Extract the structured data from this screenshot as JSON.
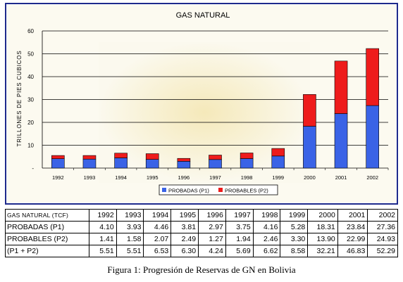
{
  "chart_data": {
    "type": "bar",
    "stacked": true,
    "title": "GAS NATURAL",
    "ylabel": "TRILLONES DE PIES CUBICOS",
    "xlabel": "",
    "ylim": [
      0,
      60
    ],
    "yticks": [
      "-",
      "10",
      "20",
      "30",
      "40",
      "50",
      "60"
    ],
    "grid": true,
    "legend_position": "bottom",
    "categories": [
      "1992",
      "1993",
      "1994",
      "1995",
      "1996",
      "1997",
      "1998",
      "1999",
      "2000",
      "2001",
      "2002"
    ],
    "series": [
      {
        "name": "PROBADAS (P1)",
        "legend_label": "PROBADAS (P1)",
        "color": "#3a63e6",
        "values": [
          4.1,
          3.93,
          4.46,
          3.81,
          2.97,
          3.75,
          4.16,
          5.28,
          18.31,
          23.84,
          27.36
        ]
      },
      {
        "name": "PROBABLES (P2)",
        "legend_label": "PROBABLES (P2)",
        "color": "#ee1c1c",
        "values": [
          1.41,
          1.58,
          2.07,
          2.49,
          1.27,
          1.94,
          2.46,
          3.3,
          13.9,
          22.99,
          24.93
        ]
      }
    ],
    "totals": [
      5.51,
      5.51,
      6.53,
      6.3,
      4.24,
      5.69,
      6.62,
      8.58,
      32.21,
      46.83,
      52.29
    ]
  },
  "table": {
    "header_label": "GAS NATURAL (TCF)",
    "years": [
      "1992",
      "1993",
      "1994",
      "1995",
      "1996",
      "1997",
      "1998",
      "1999",
      "2000",
      "2001",
      "2002"
    ],
    "rows": [
      {
        "label": "PROBADAS (P1)",
        "values": [
          "4.10",
          "3.93",
          "4.46",
          "3.81",
          "2.97",
          "3.75",
          "4.16",
          "5.28",
          "18.31",
          "23.84",
          "27.36"
        ]
      },
      {
        "label": "PROBABLES (P2)",
        "values": [
          "1.41",
          "1.58",
          "2.07",
          "2.49",
          "1.27",
          "1.94",
          "2.46",
          "3.30",
          "13.90",
          "22.99",
          "24.93"
        ]
      },
      {
        "label": "(P1 + P2)",
        "values": [
          "5.51",
          "5.51",
          "6.53",
          "6.30",
          "4.24",
          "5.69",
          "6.62",
          "8.58",
          "32.21",
          "46.83",
          "52.29"
        ]
      }
    ]
  },
  "caption": {
    "prefix": "Figura 1:",
    "text": "Progresión de Reservas de GN en Bolivia"
  },
  "colors": {
    "frame": "#1e2a8c",
    "plot_background": "#fbf8ea",
    "plot_glow": "#f6ecc2",
    "gridline": "#000000"
  }
}
